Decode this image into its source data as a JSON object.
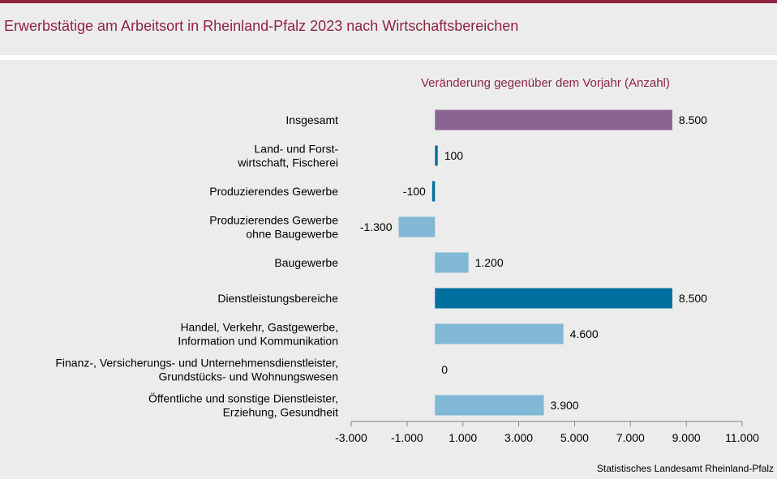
{
  "header": {
    "title": "Erwerbstätige am Arbeitsort in Rheinland-Pfalz 2023 nach Wirtschaftsbereichen"
  },
  "footer": {
    "source": "Statistisches Landesamt Rheinland-Pfalz"
  },
  "colors": {
    "brand": "#8e2440",
    "total": "#8b6592",
    "main_sector": "#0070a0",
    "sub_sector": "#80b8d6"
  },
  "chart_data": {
    "type": "bar",
    "orientation": "horizontal",
    "title": "Erwerbstätige am Arbeitsort in Rheinland-Pfalz 2023 nach Wirtschaftsbereichen",
    "subtitle": "Veränderung  gegenüber dem Vorjahr (Anzahl)",
    "xlim": [
      -3000,
      11000
    ],
    "ticks": [
      -3000,
      -1000,
      1000,
      3000,
      5000,
      7000,
      9000,
      11000
    ],
    "tick_labels": [
      "-3.000",
      "-1.000",
      "1.000",
      "3.000",
      "5.000",
      "7.000",
      "9.000",
      "11.000"
    ],
    "grid": false,
    "categories": [
      {
        "label": [
          "Insgesamt"
        ],
        "value": 8500,
        "value_label": "8.500",
        "color": "#8b6592",
        "width": "wide"
      },
      {
        "label": [
          "Land- und Forst-",
          "wirtschaft, Fischerei"
        ],
        "value": 100,
        "value_label": "100",
        "color": "#0070a0",
        "width": "narrow"
      },
      {
        "label": [
          "Produzierendes Gewerbe"
        ],
        "value": -100,
        "value_label": "-100",
        "color": "#0070a0",
        "width": "narrow"
      },
      {
        "label": [
          "Produzierendes Gewerbe",
          "ohne Baugewerbe"
        ],
        "value": -1300,
        "value_label": "-1.300",
        "color": "#80b8d6",
        "width": "wide"
      },
      {
        "label": [
          "Baugewerbe"
        ],
        "value": 1200,
        "value_label": "1.200",
        "color": "#80b8d6",
        "width": "wide"
      },
      {
        "label": [
          "Dienstleistungsbereiche"
        ],
        "value": 8500,
        "value_label": "8.500",
        "color": "#0070a0",
        "width": "wide"
      },
      {
        "label": [
          "Handel, Verkehr, Gastgewerbe,",
          "Information und Kommunikation"
        ],
        "value": 4600,
        "value_label": "4.600",
        "color": "#80b8d6",
        "width": "wide"
      },
      {
        "label": [
          "Finanz-, Versicherungs- und Unternehmensdienstleister,",
          "Grundstücks- und Wohnungswesen"
        ],
        "value": 0,
        "value_label": "0",
        "color": "#80b8d6",
        "width": "wide"
      },
      {
        "label": [
          "Öffentliche und sonstige Dienstleister,",
          "Erziehung, Gesundheit"
        ],
        "value": 3900,
        "value_label": "3.900",
        "color": "#80b8d6",
        "width": "wide"
      }
    ]
  }
}
